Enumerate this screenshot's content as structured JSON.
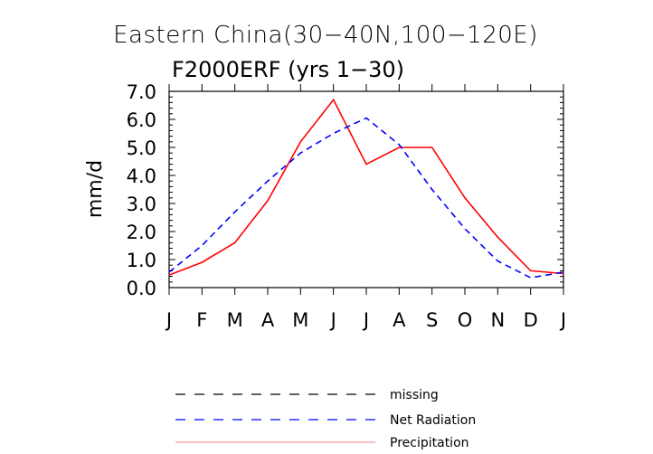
{
  "chart_data": {
    "type": "line",
    "title": "Eastern China(30−40N,100−120E)",
    "subtitle": "F2000ERF (yrs 1−30)",
    "xlabel": "",
    "ylabel": "mm/d",
    "categories": [
      "J",
      "F",
      "M",
      "A",
      "M",
      "J",
      "J",
      "A",
      "S",
      "O",
      "N",
      "D",
      "J"
    ],
    "ylim": [
      0,
      7
    ],
    "yticks": [
      "0.0",
      "1.0",
      "2.0",
      "3.0",
      "4.0",
      "5.0",
      "6.0",
      "7.0"
    ],
    "series": [
      {
        "name": "Precipitation",
        "color": "#ff0000",
        "style": "solid",
        "values": [
          0.45,
          0.9,
          1.6,
          3.1,
          5.2,
          6.7,
          4.4,
          5.0,
          5.0,
          3.2,
          1.8,
          0.6,
          0.5
        ]
      },
      {
        "name": "Net Radiation",
        "color": "#0000ff",
        "style": "dashed",
        "values": [
          0.55,
          1.5,
          2.7,
          3.8,
          4.8,
          5.5,
          6.05,
          5.1,
          3.5,
          2.1,
          0.95,
          0.35,
          0.55
        ]
      }
    ],
    "legend": [
      {
        "label": "missing",
        "color": "#000000",
        "style": "dashed"
      },
      {
        "label": "Net Radiation",
        "color": "#0000ff",
        "style": "dashed"
      },
      {
        "label": "Precipitation",
        "color": "#ff9999",
        "style": "solid"
      }
    ],
    "legend_position": "bottom-center"
  }
}
